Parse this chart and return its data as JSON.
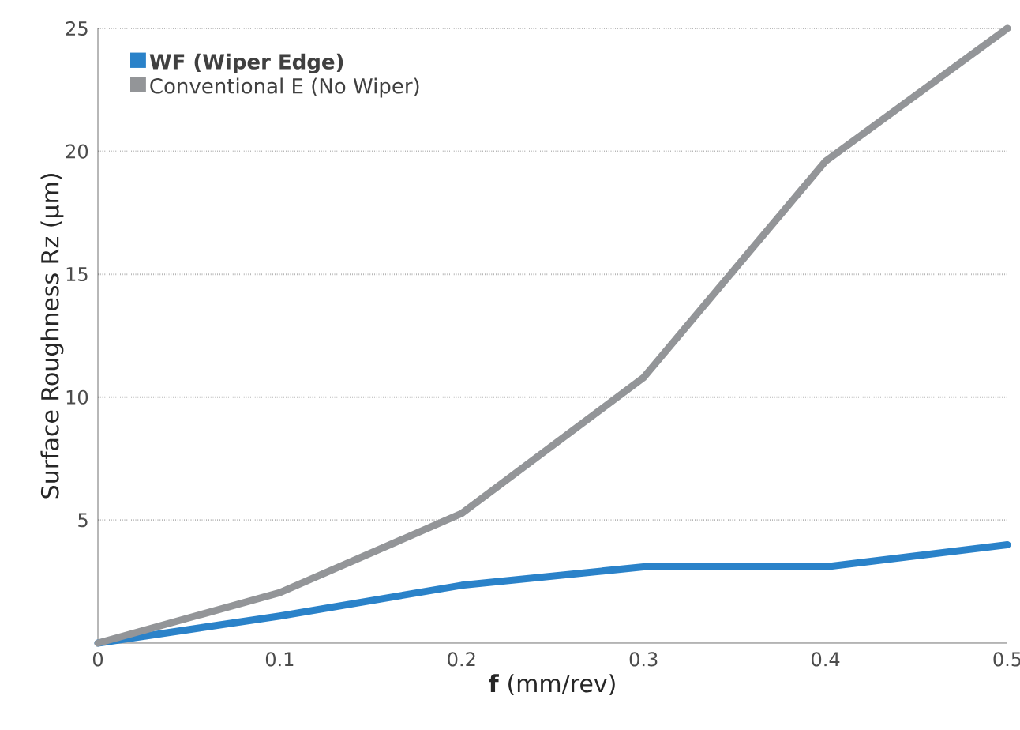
{
  "chart_data": {
    "type": "line",
    "xlabel": "**f** (mm/rev)",
    "ylabel": "Surface Roughness Rz (µm)",
    "x": [
      0,
      0.1,
      0.2,
      0.3,
      0.4,
      0.5
    ],
    "series": [
      {
        "name": "WF (Wiper Edge)",
        "color": "#2a82c9",
        "values": [
          0,
          1.1,
          2.35,
          3.1,
          3.1,
          4.0
        ]
      },
      {
        "name": "Conventional E (No Wiper)",
        "color": "#939598",
        "values": [
          0,
          2.05,
          5.27,
          10.8,
          19.6,
          25
        ]
      }
    ],
    "xlim": [
      0,
      0.5
    ],
    "ylim": [
      0,
      25
    ],
    "xticks": [
      0,
      0.1,
      0.2,
      0.3,
      0.4,
      0.5
    ],
    "yticks": [
      5,
      10,
      15,
      20,
      25
    ],
    "grid": "y",
    "legend": "top left",
    "marker": "none",
    "line_style": "solid"
  }
}
